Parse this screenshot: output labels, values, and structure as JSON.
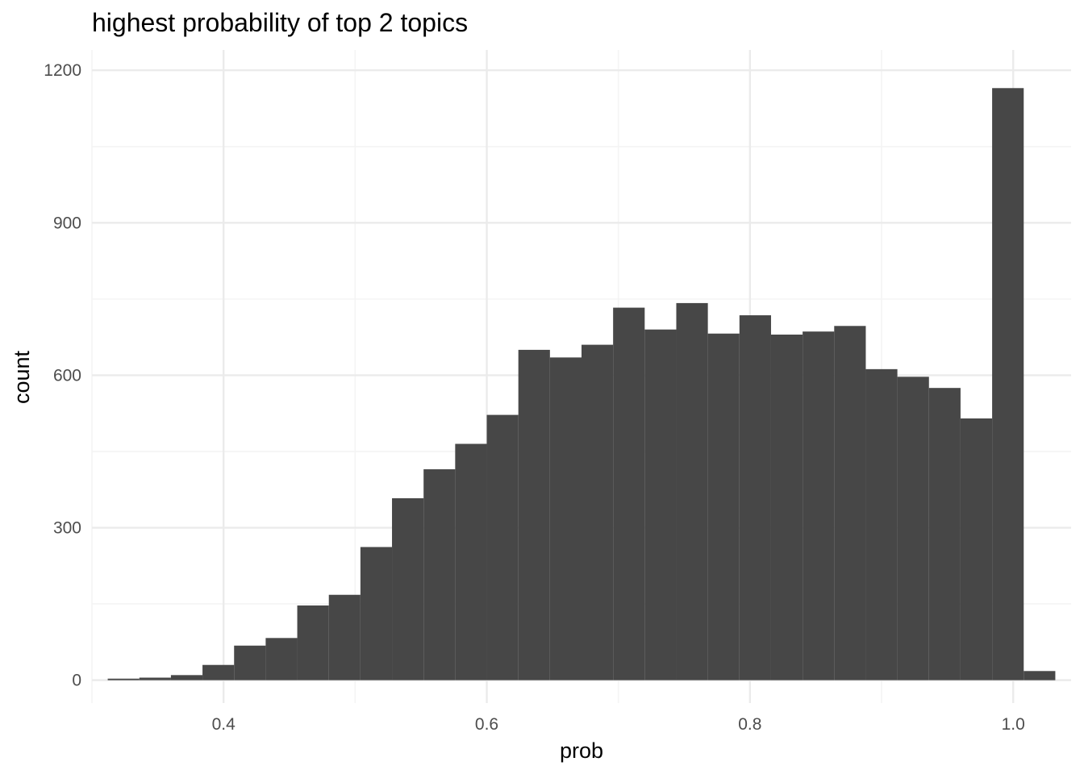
{
  "chart_data": {
    "type": "bar",
    "title": "highest probability of top 2 topics",
    "xlabel": "prob",
    "ylabel": "count",
    "bin_width": 0.024,
    "x": [
      0.324,
      0.348,
      0.372,
      0.396,
      0.42,
      0.444,
      0.468,
      0.492,
      0.516,
      0.54,
      0.564,
      0.588,
      0.612,
      0.636,
      0.66,
      0.684,
      0.708,
      0.732,
      0.756,
      0.78,
      0.804,
      0.828,
      0.852,
      0.876,
      0.9,
      0.924,
      0.948,
      0.972,
      0.996,
      1.02
    ],
    "values": [
      3,
      5,
      10,
      30,
      68,
      83,
      147,
      168,
      262,
      358,
      415,
      465,
      522,
      650,
      635,
      660,
      733,
      690,
      742,
      682,
      718,
      680,
      686,
      697,
      612,
      597,
      575,
      515,
      1165,
      18
    ],
    "xlim": [
      0.3,
      1.044
    ],
    "ylim": [
      -45,
      1240
    ],
    "x_ticks": [
      0.4,
      0.6,
      0.8,
      1.0
    ],
    "x_tick_labels": [
      "0.4",
      "0.6",
      "0.8",
      "1.0"
    ],
    "x_minor_ticks": [
      0.3,
      0.5,
      0.7,
      0.9
    ],
    "y_ticks": [
      0,
      300,
      600,
      900,
      1200
    ],
    "y_tick_labels": [
      "0",
      "300",
      "600",
      "900",
      "1200"
    ],
    "y_minor_ticks": [
      150,
      450,
      750,
      1050
    ],
    "bar_color": "#474747",
    "grid": true,
    "grid_major_color": "#ebebeb",
    "grid_minor_color": "#f4f4f4"
  }
}
